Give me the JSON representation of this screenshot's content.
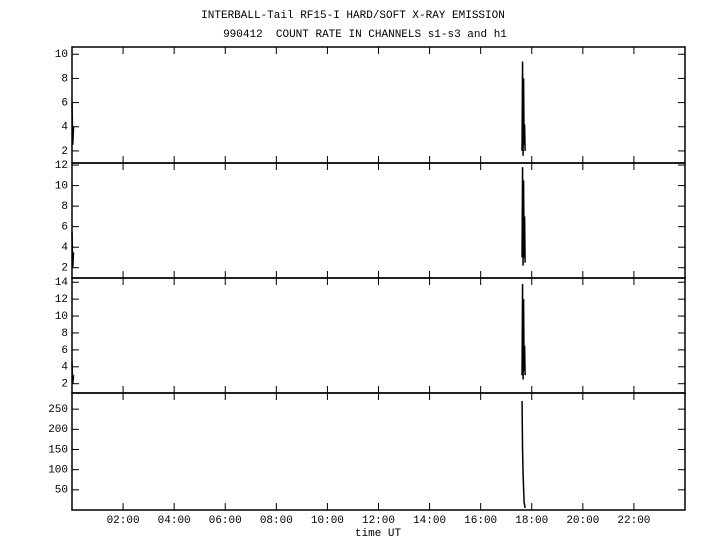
{
  "chart_data": [
    {
      "type": "line",
      "title": "INTERBALL-Tail RF15-I HARD/SOFT X-RAY EMISSION",
      "subtitle": "990412  COUNT RATE IN CHANNELS s1-s3 and h1",
      "xlim": [
        0,
        24
      ],
      "ylim": [
        1,
        10.6
      ],
      "yticks": [
        2,
        4,
        6,
        8,
        10
      ],
      "color": "#000000",
      "x": [
        0.0,
        0.03,
        0.06,
        1.0,
        17.62,
        17.64,
        17.66,
        17.68,
        17.7,
        17.72,
        17.74
      ],
      "values": [
        6,
        2.5,
        4,
        null,
        2,
        9.4,
        1.6,
        8,
        2.5,
        4.2,
        2
      ]
    },
    {
      "type": "line",
      "xlim": [
        0,
        24
      ],
      "ylim": [
        1,
        12.2
      ],
      "yticks": [
        2,
        4,
        6,
        8,
        10,
        12
      ],
      "color": "#000000",
      "x": [
        0.0,
        0.03,
        0.06,
        1.0,
        17.62,
        17.64,
        17.66,
        17.68,
        17.7,
        17.72,
        17.74
      ],
      "values": [
        5.5,
        2,
        3.5,
        null,
        3,
        11.8,
        2.2,
        10.5,
        3,
        7,
        2.5
      ]
    },
    {
      "type": "line",
      "xlim": [
        0,
        24
      ],
      "ylim": [
        0.9,
        14.5
      ],
      "yticks": [
        2,
        4,
        6,
        8,
        10,
        12,
        14
      ],
      "color": "#000000",
      "x": [
        0.0,
        0.03,
        0.06,
        1.0,
        17.62,
        17.64,
        17.66,
        17.68,
        17.7,
        17.72,
        17.74
      ],
      "values": [
        4.5,
        2,
        3,
        null,
        3,
        13.8,
        2.5,
        12,
        3.5,
        6.5,
        3
      ]
    },
    {
      "type": "line",
      "xlim": [
        0,
        24
      ],
      "ylim": [
        0,
        290
      ],
      "yticks": [
        50,
        100,
        150,
        200,
        250
      ],
      "color": "#000000",
      "xlabel": "time UT",
      "xticks": [
        {
          "value": 2,
          "label": "02:00"
        },
        {
          "value": 4,
          "label": "04:00"
        },
        {
          "value": 6,
          "label": "06:00"
        },
        {
          "value": 8,
          "label": "08:00"
        },
        {
          "value": 10,
          "label": "10:00"
        },
        {
          "value": 12,
          "label": "12:00"
        },
        {
          "value": 14,
          "label": "14:00"
        },
        {
          "value": 16,
          "label": "16:00"
        },
        {
          "value": 18,
          "label": "18:00"
        },
        {
          "value": 20,
          "label": "20:00"
        },
        {
          "value": 22,
          "label": "22:00"
        }
      ],
      "x": [
        17.62,
        17.64,
        17.66,
        17.7,
        17.74
      ],
      "values": [
        270,
        150,
        90,
        20,
        5
      ]
    }
  ]
}
